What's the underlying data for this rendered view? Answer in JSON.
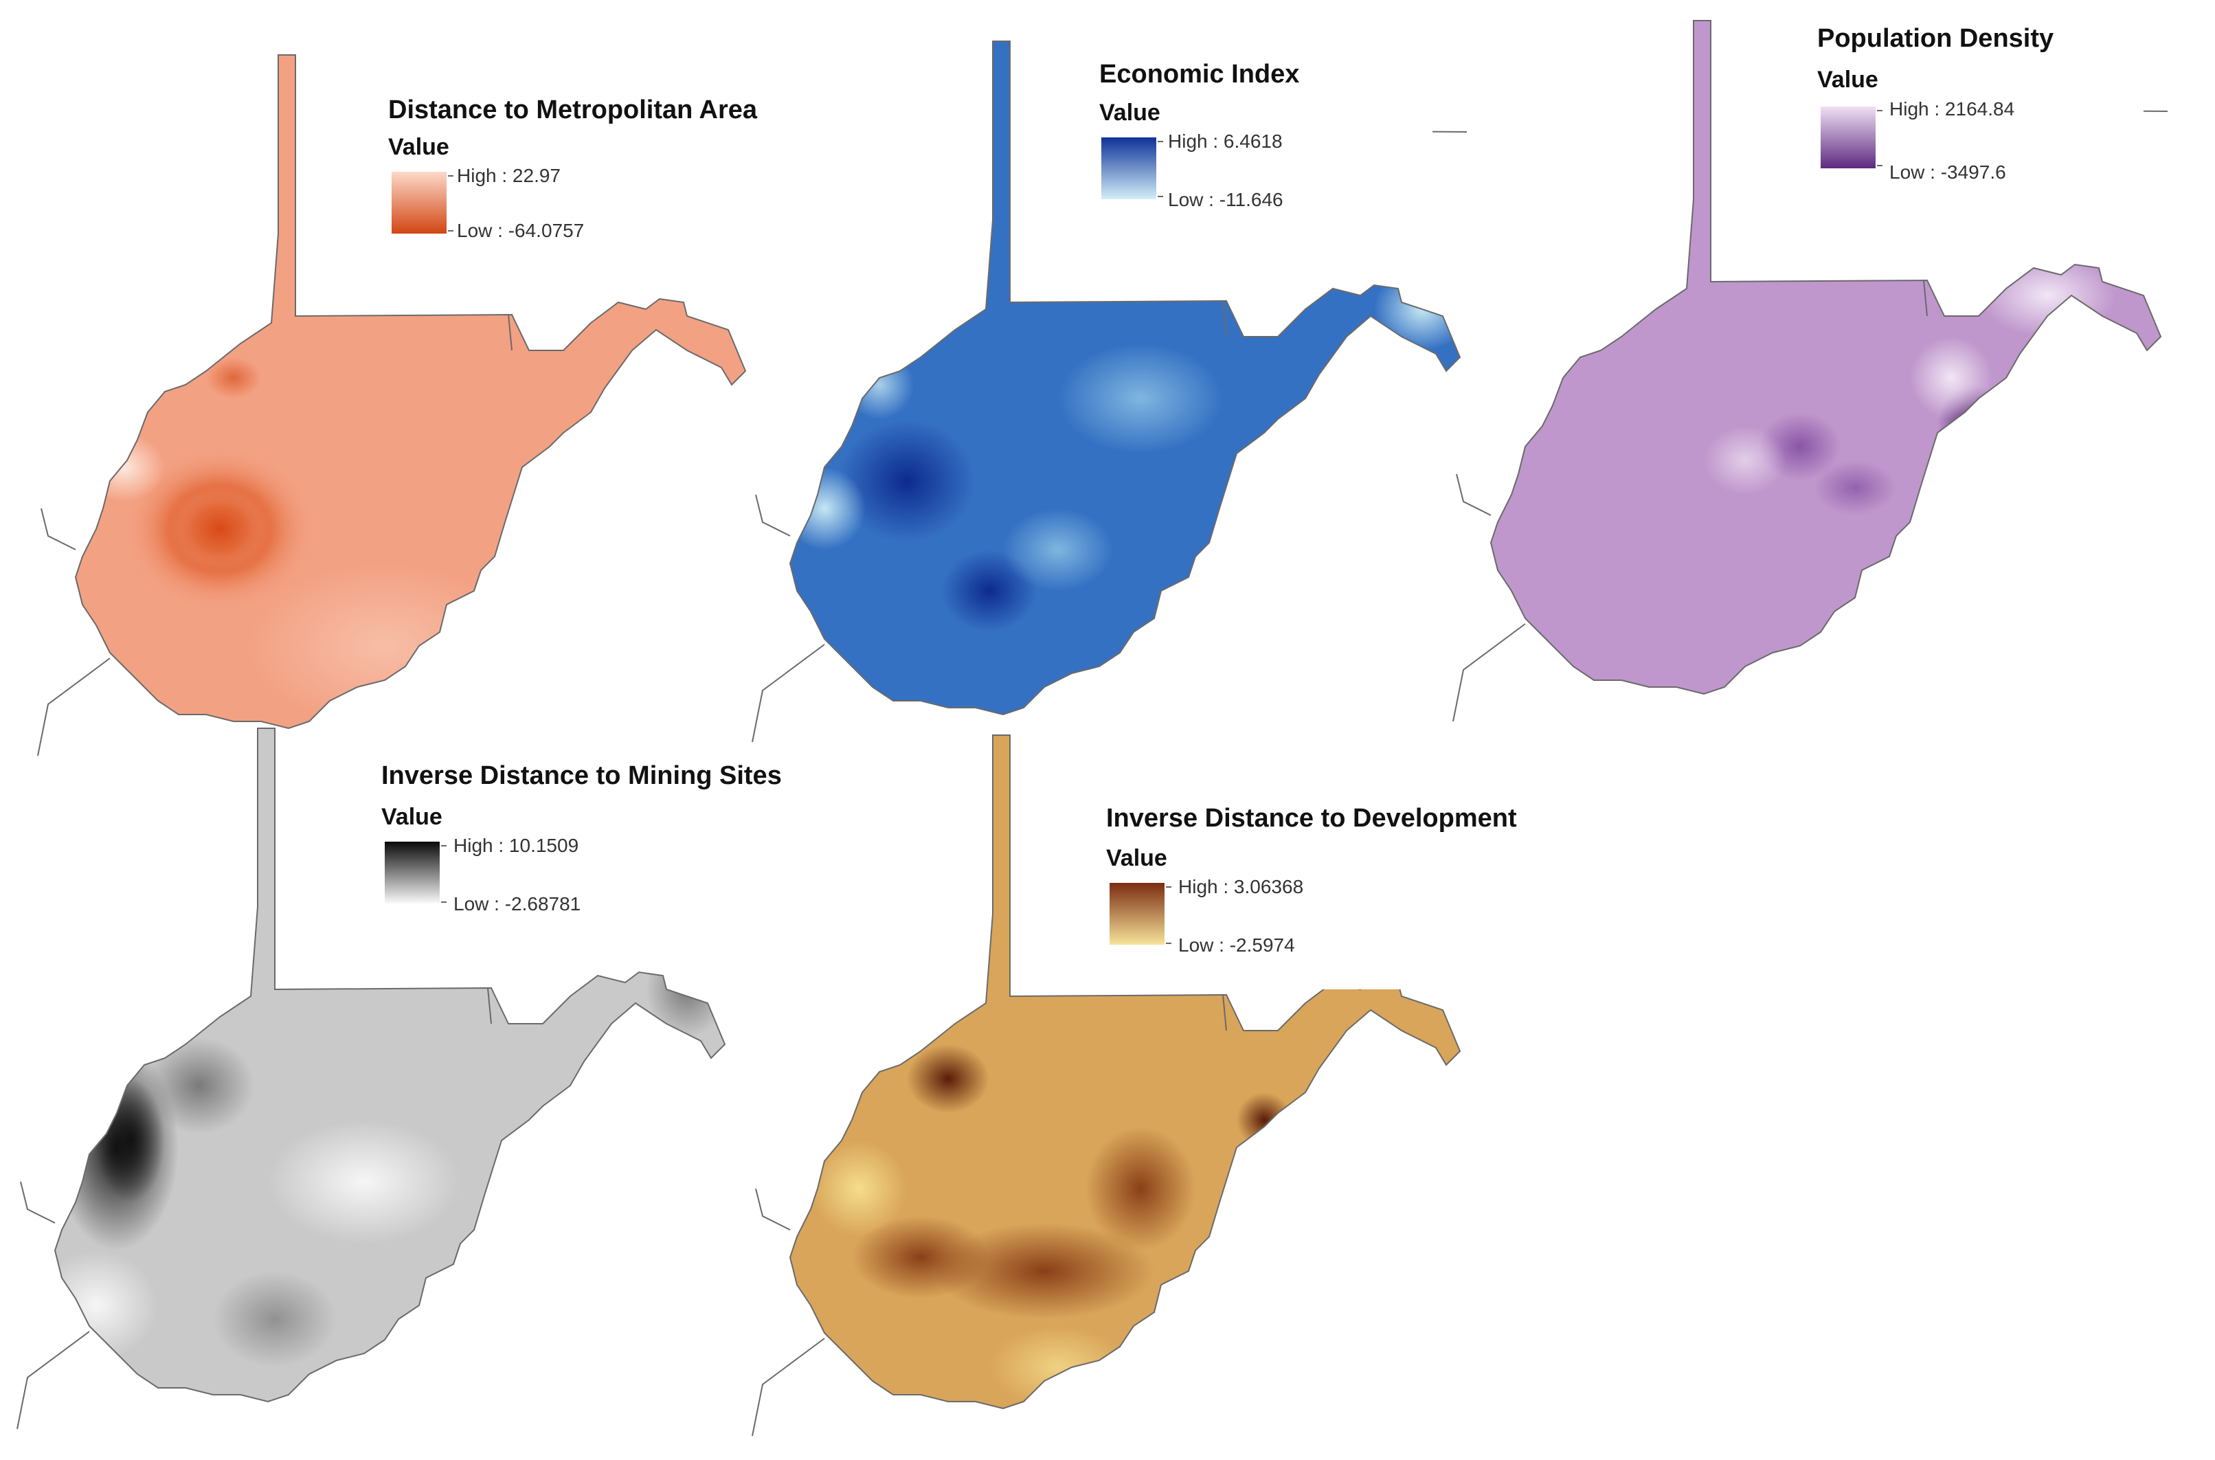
{
  "maps": [
    {
      "title": "Distance to Metropolitan Area",
      "value_label": "Value",
      "high_label": "High : 22.97",
      "low_label": "Low : -64.0757",
      "high_color": "#d84a17",
      "low_color": "#fbd7c5",
      "base_color": "#f3a183",
      "ramp_top": "#fcd9c8",
      "ramp_bottom": "#d24614"
    },
    {
      "title": "Economic Index",
      "value_label": "Value",
      "high_label": "High : 6.4618",
      "low_label": "Low : -11.646",
      "high_color": "#0d2a8f",
      "low_color": "#c6e7f3",
      "base_color": "#3571c3",
      "ramp_top": "#0f3398",
      "ramp_bottom": "#d3eef8"
    },
    {
      "title": "Population Density",
      "value_label": "Value",
      "high_label": "High : 2164.84",
      "low_label": "Low : -3497.6",
      "high_color": "#4e1d6e",
      "low_color": "#ecdcf0",
      "base_color": "#bf97cc",
      "ramp_top": "#efe0f3",
      "ramp_bottom": "#5e2a80"
    },
    {
      "title": "Inverse Distance to Mining Sites",
      "value_label": "Value",
      "high_label": "High : 10.1509",
      "low_label": "Low : -2.68781",
      "high_color": "#111111",
      "low_color": "#f6f6f6",
      "base_color": "#c9c9c9",
      "ramp_top": "#0a0a0a",
      "ramp_bottom": "#fafafa"
    },
    {
      "title": "Inverse Distance to Development",
      "value_label": "Value",
      "high_label": "High : 3.06368",
      "low_label": "Low : -2.5974",
      "high_color": "#5a1c08",
      "low_color": "#f5dd8c",
      "base_color": "#d9a55a",
      "ramp_top": "#7b2c10",
      "ramp_bottom": "#f6e39a"
    }
  ]
}
